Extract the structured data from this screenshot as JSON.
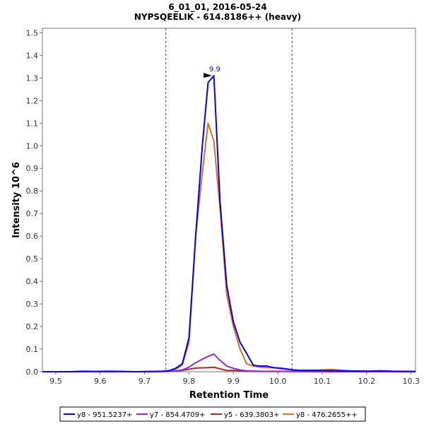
{
  "chart_data": {
    "type": "line",
    "title": "6_01_01, 2016-05-24",
    "subtitle": "NYPSQEELIK - 614.8186++ (heavy)",
    "xlabel": "Retention Time",
    "ylabel": "Intensity 10^6",
    "xlim": [
      9.47,
      10.31
    ],
    "ylim": [
      0,
      1.52
    ],
    "x_ticks": [
      "9.5",
      "9.6",
      "9.7",
      "9.8",
      "9.9",
      "10.0",
      "10.1",
      "10.2",
      "10.3"
    ],
    "x_tick_values": [
      9.5,
      9.6,
      9.7,
      9.8,
      9.9,
      10.0,
      10.1,
      10.2,
      10.3
    ],
    "y_ticks": [
      "0.0",
      "0.1",
      "0.2",
      "0.3",
      "0.4",
      "0.5",
      "0.6",
      "0.7",
      "0.8",
      "0.9",
      "1.0",
      "1.1",
      "1.2",
      "1.3",
      "1.4",
      "1.5"
    ],
    "y_tick_values": [
      0,
      0.1,
      0.2,
      0.3,
      0.4,
      0.5,
      0.6,
      0.7,
      0.8,
      0.9,
      1.0,
      1.1,
      1.2,
      1.3,
      1.4,
      1.5
    ],
    "integration_bounds": [
      9.748,
      10.032
    ],
    "peak_annotation": {
      "label": "9.9",
      "x": 9.855,
      "y": 1.31,
      "color": "#0000ff"
    },
    "legend": "bottom",
    "series": [
      {
        "name": "y8 - 951.5237+",
        "color": "#0000ff",
        "x": [
          9.47,
          9.5,
          9.53,
          9.56,
          9.59,
          9.62,
          9.65,
          9.68,
          9.71,
          9.74,
          9.755,
          9.77,
          9.785,
          9.8,
          9.815,
          9.83,
          9.843,
          9.856,
          9.87,
          9.885,
          9.9,
          9.915,
          9.93,
          9.945,
          9.96,
          9.975,
          9.99,
          10.005,
          10.02,
          10.035,
          10.05,
          10.08,
          10.11,
          10.14,
          10.17,
          10.2,
          10.23,
          10.26,
          10.31
        ],
        "values": [
          0.0,
          0.0,
          0.0,
          0.002,
          0.001,
          0.002,
          0.001,
          0.0,
          0.001,
          0.002,
          0.005,
          0.015,
          0.035,
          0.15,
          0.6,
          1.0,
          1.28,
          1.31,
          0.75,
          0.38,
          0.22,
          0.13,
          0.08,
          0.028,
          0.025,
          0.025,
          0.018,
          0.016,
          0.012,
          0.008,
          0.006,
          0.006,
          0.005,
          0.004,
          0.003,
          0.002,
          0.004,
          0.002,
          0.001
        ]
      },
      {
        "name": "y7 - 854.4709+",
        "color": "#8a2be2",
        "x": [
          9.47,
          9.6,
          9.7,
          9.755,
          9.77,
          9.785,
          9.8,
          9.815,
          9.83,
          9.843,
          9.856,
          9.87,
          9.885,
          9.9,
          9.915,
          9.93,
          9.945,
          9.96,
          9.99,
          10.03,
          10.1,
          10.2,
          10.31
        ],
        "values": [
          0.0,
          0.0,
          0.0,
          0.001,
          0.003,
          0.008,
          0.02,
          0.04,
          0.055,
          0.068,
          0.078,
          0.05,
          0.025,
          0.015,
          0.008,
          0.004,
          0.003,
          0.002,
          0.002,
          0.001,
          0.001,
          0.0,
          0.0
        ]
      },
      {
        "name": "y5 - 639.3803+",
        "color": "#a52a2a",
        "x": [
          9.47,
          9.6,
          9.7,
          9.77,
          9.785,
          9.8,
          9.815,
          9.83,
          9.843,
          9.856,
          9.87,
          9.885,
          9.9,
          9.915,
          9.93,
          9.96,
          10.0,
          10.1,
          10.31
        ],
        "values": [
          0.0,
          0.0,
          0.0,
          0.002,
          0.006,
          0.011,
          0.016,
          0.017,
          0.018,
          0.02,
          0.013,
          0.005,
          0.006,
          0.004,
          0.002,
          0.001,
          0.001,
          0.0,
          0.0
        ]
      },
      {
        "name": "y8 - 476.2655++",
        "color": "#e07020",
        "x": [
          9.47,
          9.6,
          9.7,
          9.755,
          9.77,
          9.785,
          9.8,
          9.815,
          9.83,
          9.843,
          9.856,
          9.87,
          9.885,
          9.9,
          9.915,
          9.93,
          9.945,
          9.96,
          9.975,
          9.99,
          10.01,
          10.03,
          10.06,
          10.09,
          10.12,
          10.16,
          10.2,
          10.31
        ],
        "values": [
          0.0,
          0.0,
          0.0,
          0.003,
          0.01,
          0.03,
          0.13,
          0.6,
          0.88,
          1.1,
          1.02,
          0.72,
          0.34,
          0.2,
          0.1,
          0.035,
          0.025,
          0.02,
          0.018,
          0.018,
          0.012,
          0.008,
          0.006,
          0.007,
          0.01,
          0.004,
          0.003,
          0.001
        ]
      }
    ]
  }
}
